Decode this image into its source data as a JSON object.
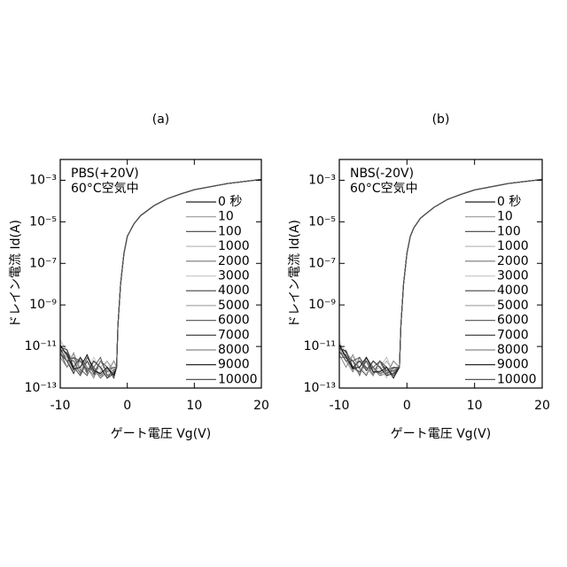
{
  "chart_data": [
    {
      "type": "line",
      "title": "(a)",
      "annotations": [
        "PBS(+20V)",
        "60°C空気中"
      ],
      "x_label": "ゲート電圧 Vg(V)",
      "y_label": "ドレイン電流 Id(A)",
      "log_y": true,
      "xlim": [
        -10,
        20
      ],
      "xticks": [
        -10,
        0,
        10,
        20
      ],
      "ylim": [
        1e-13,
        0.01
      ],
      "yticks": [
        {
          "value": 1e-13,
          "label": "10⁻¹³"
        },
        {
          "value": 1e-11,
          "label": "10⁻¹¹"
        },
        {
          "value": 1e-09,
          "label": "10⁻⁹"
        },
        {
          "value": 1e-07,
          "label": "10⁻⁷"
        },
        {
          "value": 1e-05,
          "label": "10⁻⁵"
        },
        {
          "value": 0.001,
          "label": "10⁻³"
        }
      ],
      "x": [
        -10,
        -9,
        -8,
        -7,
        -6,
        -5,
        -4,
        -3,
        -2,
        -1.6,
        -1.4,
        -1,
        -0.5,
        0,
        1,
        2,
        4,
        6,
        8,
        10,
        15,
        20
      ],
      "series": [
        {
          "name": "0 秒",
          "color": "#222222",
          "values": [
            8e-12,
            2e-12,
            5e-13,
            3e-12,
            1e-12,
            4e-13,
            2e-12,
            6e-13,
            1e-12,
            1e-12,
            1e-10,
            1e-08,
            3e-07,
            2e-06,
            8e-06,
            2e-05,
            6e-05,
            0.00013,
            0.00022,
            0.00035,
            0.0007,
            0.0011
          ]
        },
        {
          "name": "10",
          "color": "#999999",
          "values": [
            1e-11,
            4e-12,
            1e-12,
            6e-13,
            2e-12,
            8e-13,
            3e-13,
            1e-12,
            5e-13,
            1e-12,
            1e-10,
            1e-08,
            3e-07,
            2e-06,
            8e-06,
            2e-05,
            6e-05,
            0.00013,
            0.00022,
            0.00035,
            0.0007,
            0.0011
          ]
        },
        {
          "name": "100",
          "color": "#555555",
          "values": [
            5e-12,
            1e-12,
            3e-12,
            8e-13,
            4e-13,
            2e-12,
            1e-12,
            3e-13,
            8e-13,
            1e-12,
            1e-10,
            1e-08,
            3e-07,
            2e-06,
            8e-06,
            2e-05,
            6e-05,
            0.00013,
            0.00022,
            0.00035,
            0.0007,
            0.0011
          ]
        },
        {
          "name": "1000",
          "color": "#bbbbbb",
          "values": [
            2e-11,
            6e-12,
            2e-12,
            1e-12,
            3e-12,
            6e-13,
            1e-12,
            2e-12,
            4e-13,
            1e-12,
            1e-10,
            1e-08,
            3e-07,
            2e-06,
            8e-06,
            2e-05,
            6e-05,
            0.00013,
            0.00022,
            0.00035,
            0.0007,
            0.0011
          ]
        },
        {
          "name": "2000",
          "color": "#777777",
          "values": [
            6e-12,
            3e-12,
            7e-13,
            2e-12,
            5e-13,
            1e-12,
            3e-13,
            6e-13,
            1e-12,
            1e-12,
            1e-10,
            1e-08,
            3e-07,
            2e-06,
            8e-06,
            2e-05,
            6e-05,
            0.00013,
            0.00022,
            0.00035,
            0.0007,
            0.0011
          ]
        },
        {
          "name": "3000",
          "color": "#cccccc",
          "values": [
            1.5e-11,
            2e-12,
            4e-12,
            1e-12,
            7e-13,
            3e-12,
            8e-13,
            4e-13,
            2e-12,
            1e-12,
            1e-10,
            1e-08,
            3e-07,
            2e-06,
            8e-06,
            2e-05,
            6e-05,
            0.00013,
            0.00022,
            0.00035,
            0.0007,
            0.0011
          ]
        },
        {
          "name": "4000",
          "color": "#444444",
          "values": [
            7e-12,
            5e-12,
            1e-12,
            4e-13,
            2e-12,
            5e-13,
            2e-12,
            1e-12,
            3e-13,
            1e-12,
            1e-10,
            1e-08,
            3e-07,
            2e-06,
            8e-06,
            2e-05,
            6e-05,
            0.00013,
            0.00022,
            0.00035,
            0.0007,
            0.0011
          ]
        },
        {
          "name": "5000",
          "color": "#aaaaaa",
          "values": [
            1.2e-11,
            3e-12,
            6e-13,
            2e-12,
            1e-12,
            4e-13,
            6e-13,
            2e-12,
            7e-13,
            1e-12,
            1e-10,
            1e-08,
            3e-07,
            2e-06,
            8e-06,
            2e-05,
            6e-05,
            0.00013,
            0.00022,
            0.00035,
            0.0007,
            0.0011
          ]
        },
        {
          "name": "6000",
          "color": "#666666",
          "values": [
            4e-12,
            2e-12,
            2e-12,
            5e-13,
            3e-12,
            1e-12,
            4e-13,
            8e-13,
            1e-12,
            1e-12,
            1e-10,
            1e-08,
            3e-07,
            2e-06,
            8e-06,
            2e-05,
            6e-05,
            0.00013,
            0.00022,
            0.00035,
            0.0007,
            0.0011
          ]
        },
        {
          "name": "7000",
          "color": "#333333",
          "values": [
            9e-12,
            7e-12,
            1e-12,
            3e-12,
            6e-13,
            2e-12,
            1e-12,
            3e-13,
            5e-13,
            1e-12,
            1e-10,
            1e-08,
            3e-07,
            2e-06,
            8e-06,
            2e-05,
            6e-05,
            0.00013,
            0.00022,
            0.00035,
            0.0007,
            0.0011
          ]
        },
        {
          "name": "8000",
          "color": "#888888",
          "values": [
            3e-12,
            1e-12,
            5e-12,
            7e-13,
            1e-12,
            3e-13,
            2e-12,
            6e-13,
            2e-12,
            1e-12,
            1e-10,
            1e-08,
            3e-07,
            2e-06,
            8e-06,
            2e-05,
            6e-05,
            0.00013,
            0.00022,
            0.00035,
            0.0007,
            0.0011
          ]
        },
        {
          "name": "9000",
          "color": "#111111",
          "values": [
            1.1e-11,
            4e-12,
            8e-13,
            1e-12,
            4e-12,
            7e-13,
            5e-13,
            1e-12,
            4e-13,
            1e-12,
            1e-10,
            1e-08,
            3e-07,
            2e-06,
            8e-06,
            2e-05,
            6e-05,
            0.00013,
            0.00022,
            0.00035,
            0.0007,
            0.0011
          ]
        },
        {
          "name": "10000",
          "color": "#555555",
          "values": [
            5e-12,
            2e-12,
            3e-12,
            2e-12,
            8e-13,
            1e-12,
            3e-12,
            4e-13,
            6e-13,
            1e-12,
            1e-10,
            1e-08,
            3e-07,
            2e-06,
            8e-06,
            2e-05,
            6e-05,
            0.00013,
            0.00022,
            0.00035,
            0.0007,
            0.0011
          ]
        }
      ]
    },
    {
      "type": "line",
      "title": "(b)",
      "annotations": [
        "NBS(-20V)",
        "60°C空気中"
      ],
      "x_label": "ゲート電圧 Vg(V)",
      "y_label": "ドレイン電流 Id(A)",
      "log_y": true,
      "xlim": [
        -10,
        20
      ],
      "xticks": [
        -10,
        0,
        10,
        20
      ],
      "ylim": [
        1e-13,
        0.01
      ],
      "yticks": [
        {
          "value": 1e-13,
          "label": "10⁻¹³"
        },
        {
          "value": 1e-11,
          "label": "10⁻¹¹"
        },
        {
          "value": 1e-09,
          "label": "10⁻⁹"
        },
        {
          "value": 1e-07,
          "label": "10⁻⁷"
        },
        {
          "value": 1e-05,
          "label": "10⁻⁵"
        },
        {
          "value": 0.001,
          "label": "10⁻³"
        }
      ],
      "x": [
        -10,
        -9,
        -8,
        -7,
        -6,
        -5,
        -4,
        -3,
        -2,
        -1.1,
        -0.9,
        -0.5,
        0,
        0.5,
        1,
        2,
        4,
        6,
        8,
        10,
        15,
        20
      ],
      "series": [
        {
          "name": "0 秒",
          "color": "#222222",
          "values": [
            1e-11,
            3e-12,
            8e-13,
            2e-12,
            1e-12,
            5e-13,
            2e-12,
            7e-13,
            1e-12,
            1e-12,
            1e-10,
            1e-08,
            3e-07,
            2e-06,
            5e-06,
            1.5e-05,
            5e-05,
            0.00012,
            0.00021,
            0.00034,
            0.0007,
            0.0011
          ]
        },
        {
          "name": "10",
          "color": "#999999",
          "values": [
            6e-12,
            2e-12,
            1e-12,
            5e-13,
            3e-12,
            8e-13,
            4e-13,
            1e-12,
            6e-13,
            1e-12,
            1e-10,
            1e-08,
            3e-07,
            2e-06,
            5e-06,
            1.5e-05,
            5e-05,
            0.00012,
            0.00021,
            0.00034,
            0.0007,
            0.0011
          ]
        },
        {
          "name": "100",
          "color": "#555555",
          "values": [
            1.3e-11,
            5e-12,
            2e-12,
            9e-13,
            4e-13,
            2e-12,
            1e-12,
            4e-13,
            9e-13,
            1e-12,
            1e-10,
            1e-08,
            3e-07,
            2e-06,
            5e-06,
            1.5e-05,
            5e-05,
            0.00012,
            0.00021,
            0.00034,
            0.0007,
            0.0011
          ]
        },
        {
          "name": "1000",
          "color": "#bbbbbb",
          "values": [
            4e-12,
            7e-12,
            1e-12,
            2e-12,
            2e-12,
            6e-13,
            1e-12,
            3e-12,
            5e-13,
            1e-12,
            1e-10,
            1e-08,
            3e-07,
            2e-06,
            5e-06,
            1.5e-05,
            5e-05,
            0.00012,
            0.00021,
            0.00034,
            0.0007,
            0.0011
          ]
        },
        {
          "name": "2000",
          "color": "#777777",
          "values": [
            9e-12,
            2e-12,
            6e-13,
            3e-12,
            7e-13,
            1e-12,
            4e-13,
            5e-13,
            1e-12,
            1e-12,
            1e-10,
            1e-08,
            3e-07,
            2e-06,
            5e-06,
            1.5e-05,
            5e-05,
            0.00012,
            0.00021,
            0.00034,
            0.0007,
            0.0011
          ]
        },
        {
          "name": "3000",
          "color": "#cccccc",
          "values": [
            2e-11,
            3e-12,
            3e-12,
            1e-12,
            5e-13,
            2e-12,
            9e-13,
            3e-13,
            2e-12,
            1e-12,
            1e-10,
            1e-08,
            3e-07,
            2e-06,
            5e-06,
            1.5e-05,
            5e-05,
            0.00012,
            0.00021,
            0.00034,
            0.0007,
            0.0011
          ]
        },
        {
          "name": "4000",
          "color": "#444444",
          "values": [
            5e-12,
            4e-12,
            1e-12,
            6e-13,
            2e-12,
            4e-13,
            2e-12,
            1e-12,
            4e-13,
            1e-12,
            1e-10,
            1e-08,
            3e-07,
            2e-06,
            5e-06,
            1.5e-05,
            5e-05,
            0.00012,
            0.00021,
            0.00034,
            0.0007,
            0.0011
          ]
        },
        {
          "name": "5000",
          "color": "#aaaaaa",
          "values": [
            1e-11,
            2e-12,
            7e-13,
            2e-12,
            1e-12,
            5e-13,
            7e-13,
            2e-12,
            6e-13,
            1e-12,
            1e-10,
            1e-08,
            3e-07,
            2e-06,
            5e-06,
            1.5e-05,
            5e-05,
            0.00012,
            0.00021,
            0.00034,
            0.0007,
            0.0011
          ]
        },
        {
          "name": "6000",
          "color": "#666666",
          "values": [
            3e-12,
            3e-12,
            2e-12,
            4e-13,
            3e-12,
            1e-12,
            5e-13,
            7e-13,
            1e-12,
            1e-12,
            1e-10,
            1e-08,
            3e-07,
            2e-06,
            5e-06,
            1.5e-05,
            5e-05,
            0.00012,
            0.00021,
            0.00034,
            0.0007,
            0.0011
          ]
        },
        {
          "name": "7000",
          "color": "#333333",
          "values": [
            8e-12,
            6e-12,
            1e-12,
            2e-12,
            7e-13,
            2e-12,
            1e-12,
            4e-13,
            5e-13,
            1e-12,
            1e-10,
            1e-08,
            3e-07,
            2e-06,
            5e-06,
            1.5e-05,
            5e-05,
            0.00012,
            0.00021,
            0.00034,
            0.0007,
            0.0011
          ]
        },
        {
          "name": "8000",
          "color": "#888888",
          "values": [
            4e-12,
            1e-12,
            4e-12,
            8e-13,
            1e-12,
            4e-13,
            2e-12,
            5e-13,
            2e-12,
            1e-12,
            1e-10,
            1e-08,
            3e-07,
            2e-06,
            5e-06,
            1.5e-05,
            5e-05,
            0.00012,
            0.00021,
            0.00034,
            0.0007,
            0.0011
          ]
        },
        {
          "name": "9000",
          "color": "#111111",
          "values": [
            1.2e-11,
            3e-12,
            9e-13,
            1e-12,
            3e-12,
            6e-13,
            6e-13,
            1e-12,
            3e-13,
            1e-12,
            1e-10,
            1e-08,
            3e-07,
            2e-06,
            5e-06,
            1.5e-05,
            5e-05,
            0.00012,
            0.00021,
            0.00034,
            0.0007,
            0.0011
          ]
        },
        {
          "name": "10000",
          "color": "#555555",
          "values": [
            6e-12,
            2e-12,
            2e-12,
            3e-12,
            9e-13,
            1e-12,
            2e-12,
            5e-13,
            7e-13,
            1e-12,
            1e-10,
            1e-08,
            3e-07,
            2e-06,
            5e-06,
            1.5e-05,
            5e-05,
            0.00012,
            0.00021,
            0.00034,
            0.0007,
            0.0011
          ]
        }
      ]
    }
  ]
}
